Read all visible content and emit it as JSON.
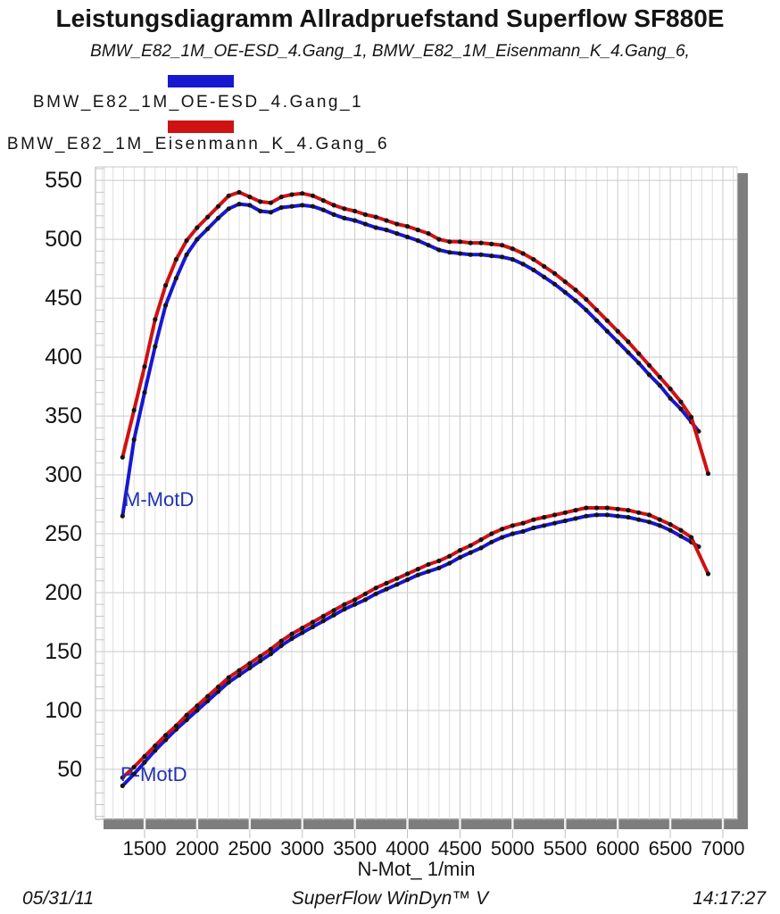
{
  "chart_data": {
    "type": "line",
    "title": "Leistungsdiagramm Allradpruefstand Superflow SF880E",
    "subtitle": "BMW_E82_1M_OE-ESD_4.Gang_1, BMW_E82_1M_Eisenmann_K_4.Gang_6,",
    "xlabel": "N-Mot_ 1/min",
    "ylabel": "",
    "xlim": [
      1033,
      7136
    ],
    "ylim": [
      7.5,
      561.5
    ],
    "x_ticks": [
      1500,
      2000,
      2500,
      3000,
      3500,
      4000,
      4500,
      5000,
      5500,
      6000,
      6500,
      7000
    ],
    "y_ticks": [
      50,
      100,
      150,
      200,
      250,
      300,
      350,
      400,
      450,
      500,
      550
    ],
    "x_minor_step": 100,
    "y_minor_step": 10,
    "grid": true,
    "legend_position": "top-left",
    "point_color": "#141414",
    "legend": [
      {
        "label": "BMW_E82_1M_OE-ESD_4.Gang_1",
        "color": "#1717d0"
      },
      {
        "label": "BMW_E82_1M_Eisenmann_K_4.Gang_6",
        "color": "#cf1212"
      }
    ],
    "curve_labels": [
      {
        "text": "M-MotD"
      },
      {
        "text": "P-MotD"
      }
    ],
    "series": [
      {
        "id": "torque-oe-esd",
        "name": "M-MotD BMW_E82_1M_OE-ESD_4.Gang_1",
        "color": "#1717d0",
        "points": [
          [
            1290,
            265
          ],
          [
            1400,
            330
          ],
          [
            1500,
            370
          ],
          [
            1600,
            409
          ],
          [
            1700,
            444
          ],
          [
            1800,
            467
          ],
          [
            1900,
            487
          ],
          [
            2000,
            500
          ],
          [
            2100,
            509
          ],
          [
            2200,
            518
          ],
          [
            2300,
            526
          ],
          [
            2400,
            530
          ],
          [
            2500,
            529
          ],
          [
            2600,
            524
          ],
          [
            2700,
            523
          ],
          [
            2800,
            527
          ],
          [
            2900,
            528
          ],
          [
            3000,
            529
          ],
          [
            3100,
            528
          ],
          [
            3200,
            525
          ],
          [
            3300,
            521
          ],
          [
            3400,
            518
          ],
          [
            3500,
            516
          ],
          [
            3600,
            513
          ],
          [
            3700,
            510
          ],
          [
            3800,
            508
          ],
          [
            3900,
            505
          ],
          [
            4000,
            502
          ],
          [
            4100,
            499
          ],
          [
            4200,
            495
          ],
          [
            4300,
            491
          ],
          [
            4400,
            489
          ],
          [
            4500,
            488
          ],
          [
            4600,
            487
          ],
          [
            4700,
            487
          ],
          [
            4800,
            486
          ],
          [
            4900,
            485
          ],
          [
            5000,
            483
          ],
          [
            5100,
            479
          ],
          [
            5200,
            474
          ],
          [
            5300,
            468
          ],
          [
            5400,
            462
          ],
          [
            5500,
            455
          ],
          [
            5600,
            448
          ],
          [
            5700,
            440
          ],
          [
            5800,
            431
          ],
          [
            5900,
            422
          ],
          [
            6000,
            413
          ],
          [
            6100,
            404
          ],
          [
            6200,
            395
          ],
          [
            6300,
            385
          ],
          [
            6400,
            376
          ],
          [
            6500,
            365
          ],
          [
            6600,
            356
          ],
          [
            6700,
            345
          ],
          [
            6770,
            337
          ]
        ]
      },
      {
        "id": "torque-eisenmann",
        "name": "M-MotD BMW_E82_1M_Eisenmann_K_4.Gang_6",
        "color": "#cf1212",
        "points": [
          [
            1290,
            315
          ],
          [
            1400,
            355
          ],
          [
            1500,
            392
          ],
          [
            1600,
            432
          ],
          [
            1700,
            461
          ],
          [
            1800,
            483
          ],
          [
            1900,
            499
          ],
          [
            2000,
            510
          ],
          [
            2100,
            519
          ],
          [
            2200,
            528
          ],
          [
            2300,
            537
          ],
          [
            2400,
            540
          ],
          [
            2500,
            536
          ],
          [
            2600,
            532
          ],
          [
            2700,
            531
          ],
          [
            2800,
            536
          ],
          [
            2900,
            538
          ],
          [
            3000,
            539
          ],
          [
            3100,
            537
          ],
          [
            3200,
            533
          ],
          [
            3300,
            529
          ],
          [
            3400,
            526
          ],
          [
            3500,
            524
          ],
          [
            3600,
            521
          ],
          [
            3700,
            519
          ],
          [
            3800,
            516
          ],
          [
            3900,
            513
          ],
          [
            4000,
            511
          ],
          [
            4100,
            508
          ],
          [
            4200,
            505
          ],
          [
            4300,
            500
          ],
          [
            4400,
            498
          ],
          [
            4500,
            498
          ],
          [
            4600,
            497
          ],
          [
            4700,
            497
          ],
          [
            4800,
            496
          ],
          [
            4900,
            495
          ],
          [
            5000,
            492
          ],
          [
            5100,
            488
          ],
          [
            5200,
            483
          ],
          [
            5300,
            477
          ],
          [
            5400,
            471
          ],
          [
            5500,
            464
          ],
          [
            5600,
            457
          ],
          [
            5700,
            449
          ],
          [
            5800,
            440
          ],
          [
            5900,
            431
          ],
          [
            6000,
            422
          ],
          [
            6100,
            413
          ],
          [
            6200,
            403
          ],
          [
            6300,
            393
          ],
          [
            6400,
            383
          ],
          [
            6500,
            373
          ],
          [
            6600,
            362
          ],
          [
            6700,
            349
          ],
          [
            6860,
            301
          ]
        ]
      },
      {
        "id": "power-oe-esd",
        "name": "P-MotD BMW_E82_1M_OE-ESD_4.Gang_1",
        "color": "#1717d0",
        "points": [
          [
            1290,
            36
          ],
          [
            1400,
            46
          ],
          [
            1500,
            56
          ],
          [
            1600,
            66
          ],
          [
            1700,
            75
          ],
          [
            1800,
            84
          ],
          [
            1900,
            92
          ],
          [
            2000,
            100
          ],
          [
            2100,
            108
          ],
          [
            2200,
            116
          ],
          [
            2300,
            124
          ],
          [
            2400,
            130
          ],
          [
            2500,
            136
          ],
          [
            2600,
            142
          ],
          [
            2700,
            148
          ],
          [
            2800,
            155
          ],
          [
            2900,
            161
          ],
          [
            3000,
            166
          ],
          [
            3100,
            171
          ],
          [
            3200,
            176
          ],
          [
            3300,
            181
          ],
          [
            3400,
            186
          ],
          [
            3500,
            190
          ],
          [
            3600,
            194
          ],
          [
            3700,
            199
          ],
          [
            3800,
            203
          ],
          [
            3900,
            207
          ],
          [
            4000,
            211
          ],
          [
            4100,
            215
          ],
          [
            4200,
            218
          ],
          [
            4300,
            221
          ],
          [
            4400,
            225
          ],
          [
            4500,
            230
          ],
          [
            4600,
            234
          ],
          [
            4700,
            238
          ],
          [
            4800,
            243
          ],
          [
            4900,
            247
          ],
          [
            5000,
            250
          ],
          [
            5100,
            252
          ],
          [
            5200,
            255
          ],
          [
            5300,
            257
          ],
          [
            5400,
            259
          ],
          [
            5500,
            261
          ],
          [
            5600,
            263
          ],
          [
            5700,
            265
          ],
          [
            5800,
            266
          ],
          [
            5900,
            266
          ],
          [
            6000,
            265
          ],
          [
            6100,
            264
          ],
          [
            6200,
            262
          ],
          [
            6300,
            260
          ],
          [
            6400,
            257
          ],
          [
            6500,
            253
          ],
          [
            6600,
            248
          ],
          [
            6700,
            243
          ],
          [
            6770,
            239
          ]
        ]
      },
      {
        "id": "power-eisenmann",
        "name": "P-MotD BMW_E82_1M_Eisenmann_K_4.Gang_6",
        "color": "#cf1212",
        "points": [
          [
            1290,
            43
          ],
          [
            1400,
            52
          ],
          [
            1500,
            61
          ],
          [
            1600,
            70
          ],
          [
            1700,
            79
          ],
          [
            1800,
            87
          ],
          [
            1900,
            96
          ],
          [
            2000,
            104
          ],
          [
            2100,
            112
          ],
          [
            2200,
            120
          ],
          [
            2300,
            128
          ],
          [
            2400,
            134
          ],
          [
            2500,
            140
          ],
          [
            2600,
            146
          ],
          [
            2700,
            152
          ],
          [
            2800,
            159
          ],
          [
            2900,
            165
          ],
          [
            3000,
            170
          ],
          [
            3100,
            175
          ],
          [
            3200,
            180
          ],
          [
            3300,
            185
          ],
          [
            3400,
            190
          ],
          [
            3500,
            194
          ],
          [
            3600,
            199
          ],
          [
            3700,
            204
          ],
          [
            3800,
            208
          ],
          [
            3900,
            212
          ],
          [
            4000,
            216
          ],
          [
            4100,
            220
          ],
          [
            4200,
            224
          ],
          [
            4300,
            227
          ],
          [
            4400,
            231
          ],
          [
            4500,
            236
          ],
          [
            4600,
            240
          ],
          [
            4700,
            245
          ],
          [
            4800,
            250
          ],
          [
            4900,
            254
          ],
          [
            5000,
            257
          ],
          [
            5100,
            259
          ],
          [
            5200,
            262
          ],
          [
            5300,
            264
          ],
          [
            5400,
            266
          ],
          [
            5500,
            268
          ],
          [
            5600,
            270
          ],
          [
            5700,
            272
          ],
          [
            5800,
            272
          ],
          [
            5900,
            272
          ],
          [
            6000,
            271
          ],
          [
            6100,
            270
          ],
          [
            6200,
            268
          ],
          [
            6300,
            266
          ],
          [
            6400,
            262
          ],
          [
            6500,
            258
          ],
          [
            6600,
            253
          ],
          [
            6700,
            247
          ],
          [
            6860,
            216
          ]
        ]
      }
    ]
  },
  "footer": {
    "date": "05/31/11",
    "app": "SuperFlow WinDyn™ V",
    "time": "14:17:27"
  }
}
